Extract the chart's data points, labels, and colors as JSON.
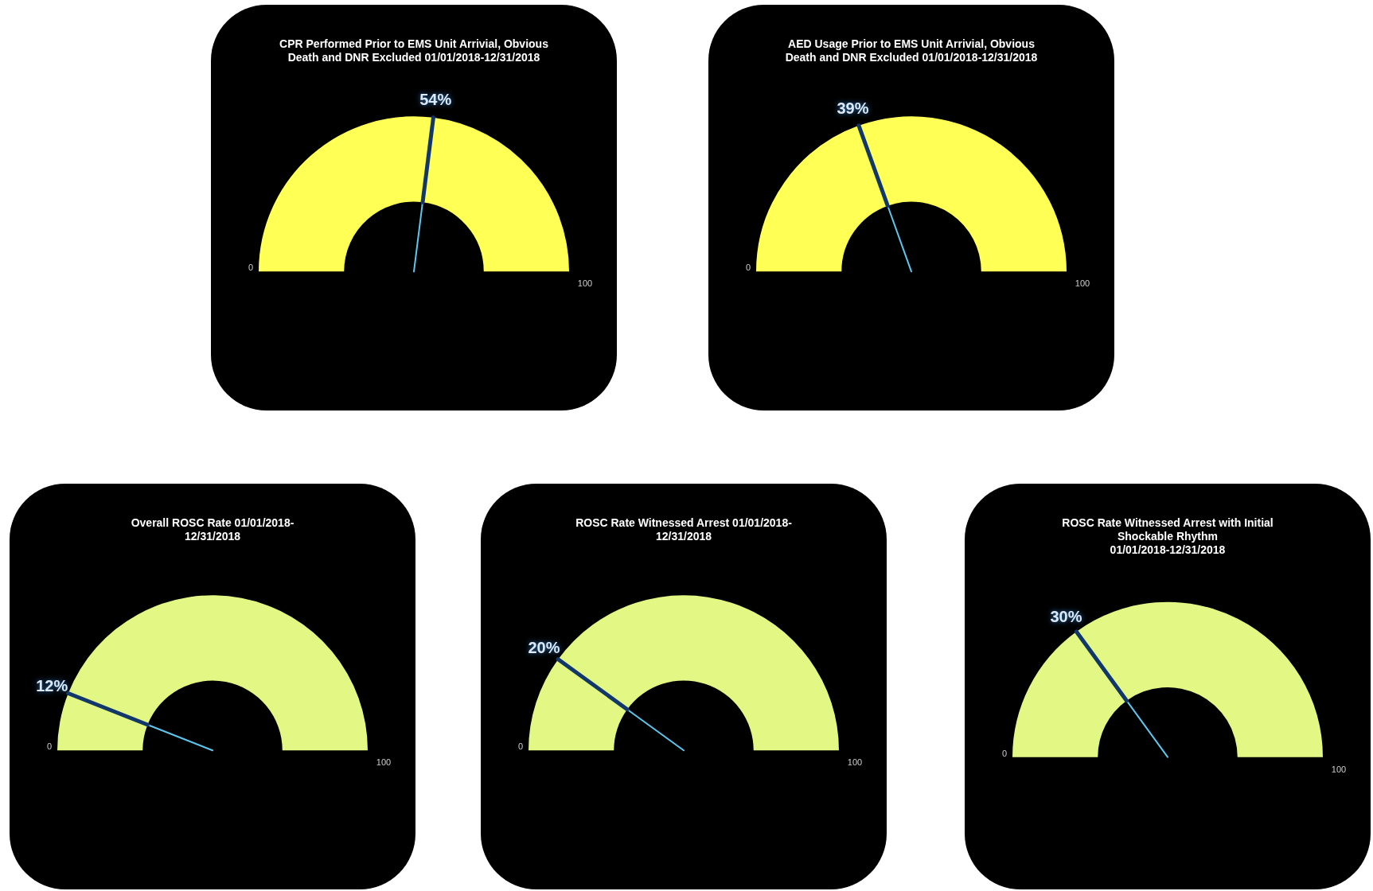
{
  "chart_data": [
    {
      "type": "donut",
      "title": "CPR Performed Prior to EMS Unit Arrivial, Obvious\nDeath and DNR Excluded 01/01/2018-12/31/2018",
      "categories": [
        null,
        null
      ],
      "values": [
        54,
        46
      ],
      "colors": [
        "#ffff55",
        "#ffff55"
      ],
      "value_labels": [
        "54%",
        null
      ],
      "annotations": [
        "0",
        "100"
      ]
    },
    {
      "type": "donut",
      "title": "AED Usage Prior to EMS Unit Arrivial, Obvious\nDeath and DNR Excluded 01/01/2018-12/31/2018",
      "categories": [
        null,
        null
      ],
      "values": [
        39,
        61
      ],
      "colors": [
        "#ffff55",
        "#ffff55"
      ],
      "value_labels": [
        "39%",
        null
      ],
      "annotations": [
        "0",
        "100"
      ]
    },
    {
      "type": "donut",
      "title": "Overall ROSC Rate 01/01/2018-\n12/31/2018",
      "categories": [
        null,
        null
      ],
      "values": [
        12,
        88
      ],
      "colors": [
        "#e2f784",
        "#e2f784"
      ],
      "value_labels": [
        "12%",
        null
      ],
      "annotations": [
        "0",
        "100"
      ]
    },
    {
      "type": "donut",
      "title": "ROSC Rate Witnessed Arrest 01/01/2018-\n12/31/2018",
      "categories": [
        null,
        null
      ],
      "values": [
        20,
        80
      ],
      "colors": [
        "#e2f784",
        "#e2f784"
      ],
      "value_labels": [
        "20%",
        null
      ],
      "annotations": [
        "0",
        "100"
      ]
    },
    {
      "type": "donut",
      "title": "ROSC Rate Witnessed Arrest with Initial\nShockable Rhythm\n01/01/2018-12/31/2018",
      "categories": [
        null,
        null
      ],
      "values": [
        30,
        70
      ],
      "colors": [
        "#e2f784",
        "#e2f784"
      ],
      "value_labels": [
        "30%",
        null
      ],
      "annotations": [
        "0",
        "100"
      ]
    }
  ]
}
